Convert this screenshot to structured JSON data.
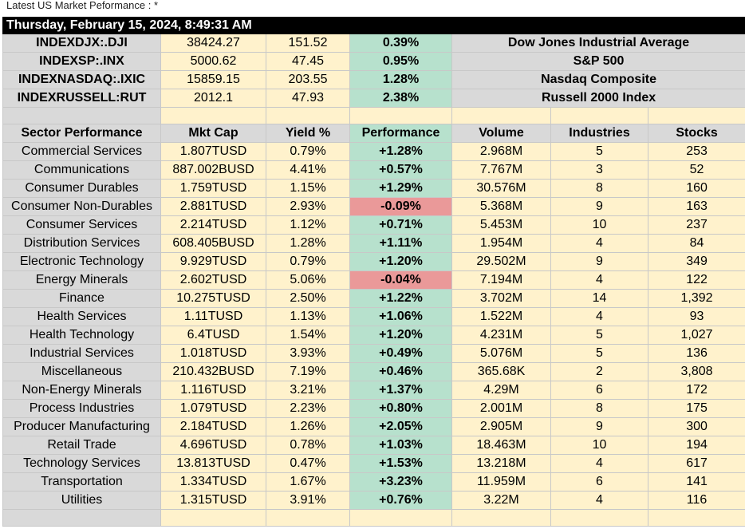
{
  "title": "Latest US Market Peformance : *",
  "datetime": "Thursday, February 15, 2024, 8:49:31 AM",
  "indices": [
    {
      "symbol": "INDEXDJX:.DJI",
      "price": "38424.27",
      "change": "151.52",
      "pct": "0.39%",
      "name": "Dow Jones Industrial Average"
    },
    {
      "symbol": "INDEXSP:.INX",
      "price": "5000.62",
      "change": "47.45",
      "pct": "0.95%",
      "name": "S&P 500"
    },
    {
      "symbol": "INDEXNASDAQ:.IXIC",
      "price": "15859.15",
      "change": "203.55",
      "pct": "1.28%",
      "name": "Nasdaq Composite"
    },
    {
      "symbol": "INDEXRUSSELL:RUT",
      "price": "2012.1",
      "change": "47.93",
      "pct": "2.38%",
      "name": "Russell 2000 Index"
    }
  ],
  "headers": [
    "Sector Performance",
    "Mkt Cap",
    "Yield %",
    "Performance",
    "Volume",
    "Industries",
    "Stocks"
  ],
  "sectors": [
    {
      "name": "Commercial Services",
      "cap": "1.807TUSD",
      "yield": "0.79%",
      "perf": "+1.28%",
      "volume": "2.968M",
      "industries": "5",
      "stocks": "253",
      "dir": "pos"
    },
    {
      "name": "Communications",
      "cap": "887.002BUSD",
      "yield": "4.41%",
      "perf": "+0.57%",
      "volume": "7.767M",
      "industries": "3",
      "stocks": "52",
      "dir": "pos"
    },
    {
      "name": "Consumer Durables",
      "cap": "1.759TUSD",
      "yield": "1.15%",
      "perf": "+1.29%",
      "volume": "30.576M",
      "industries": "8",
      "stocks": "160",
      "dir": "pos"
    },
    {
      "name": "Consumer Non-Durables",
      "cap": "2.881TUSD",
      "yield": "2.93%",
      "perf": "-0.09%",
      "volume": "5.368M",
      "industries": "9",
      "stocks": "163",
      "dir": "neg"
    },
    {
      "name": "Consumer Services",
      "cap": "2.214TUSD",
      "yield": "1.12%",
      "perf": "+0.71%",
      "volume": "5.453M",
      "industries": "10",
      "stocks": "237",
      "dir": "pos"
    },
    {
      "name": "Distribution Services",
      "cap": "608.405BUSD",
      "yield": "1.28%",
      "perf": "+1.11%",
      "volume": "1.954M",
      "industries": "4",
      "stocks": "84",
      "dir": "pos"
    },
    {
      "name": "Electronic Technology",
      "cap": "9.929TUSD",
      "yield": "0.79%",
      "perf": "+1.20%",
      "volume": "29.502M",
      "industries": "9",
      "stocks": "349",
      "dir": "pos"
    },
    {
      "name": "Energy Minerals",
      "cap": "2.602TUSD",
      "yield": "5.06%",
      "perf": "-0.04%",
      "volume": "7.194M",
      "industries": "4",
      "stocks": "122",
      "dir": "neg"
    },
    {
      "name": "Finance",
      "cap": "10.275TUSD",
      "yield": "2.50%",
      "perf": "+1.22%",
      "volume": "3.702M",
      "industries": "14",
      "stocks": "1,392",
      "dir": "pos"
    },
    {
      "name": "Health Services",
      "cap": "1.11TUSD",
      "yield": "1.13%",
      "perf": "+1.06%",
      "volume": "1.522M",
      "industries": "4",
      "stocks": "93",
      "dir": "pos"
    },
    {
      "name": "Health Technology",
      "cap": "6.4TUSD",
      "yield": "1.54%",
      "perf": "+1.20%",
      "volume": "4.231M",
      "industries": "5",
      "stocks": "1,027",
      "dir": "pos"
    },
    {
      "name": "Industrial Services",
      "cap": "1.018TUSD",
      "yield": "3.93%",
      "perf": "+0.49%",
      "volume": "5.076M",
      "industries": "5",
      "stocks": "136",
      "dir": "pos"
    },
    {
      "name": "Miscellaneous",
      "cap": "210.432BUSD",
      "yield": "7.19%",
      "perf": "+0.46%",
      "volume": "365.68K",
      "industries": "2",
      "stocks": "3,808",
      "dir": "pos"
    },
    {
      "name": "Non-Energy Minerals",
      "cap": "1.116TUSD",
      "yield": "3.21%",
      "perf": "+1.37%",
      "volume": "4.29M",
      "industries": "6",
      "stocks": "172",
      "dir": "pos"
    },
    {
      "name": "Process Industries",
      "cap": "1.079TUSD",
      "yield": "2.23%",
      "perf": "+0.80%",
      "volume": "2.001M",
      "industries": "8",
      "stocks": "175",
      "dir": "pos"
    },
    {
      "name": "Producer Manufacturing",
      "cap": "2.184TUSD",
      "yield": "1.26%",
      "perf": "+2.05%",
      "volume": "2.905M",
      "industries": "9",
      "stocks": "300",
      "dir": "pos"
    },
    {
      "name": "Retail Trade",
      "cap": "4.696TUSD",
      "yield": "0.78%",
      "perf": "+1.03%",
      "volume": "18.463M",
      "industries": "10",
      "stocks": "194",
      "dir": "pos"
    },
    {
      "name": "Technology Services",
      "cap": "13.813TUSD",
      "yield": "0.47%",
      "perf": "+1.53%",
      "volume": "13.218M",
      "industries": "4",
      "stocks": "617",
      "dir": "pos"
    },
    {
      "name": "Transportation",
      "cap": "1.334TUSD",
      "yield": "1.67%",
      "perf": "+3.23%",
      "volume": "11.959M",
      "industries": "6",
      "stocks": "141",
      "dir": "pos"
    },
    {
      "name": "Utilities",
      "cap": "1.315TUSD",
      "yield": "3.91%",
      "perf": "+0.76%",
      "volume": "3.22M",
      "industries": "4",
      "stocks": "116",
      "dir": "pos"
    }
  ],
  "colors": {
    "positive": "#b7e1cd",
    "negative": "#ea9999",
    "header_gray": "#d9d9d9",
    "cell_yellow": "#fff2cc"
  }
}
